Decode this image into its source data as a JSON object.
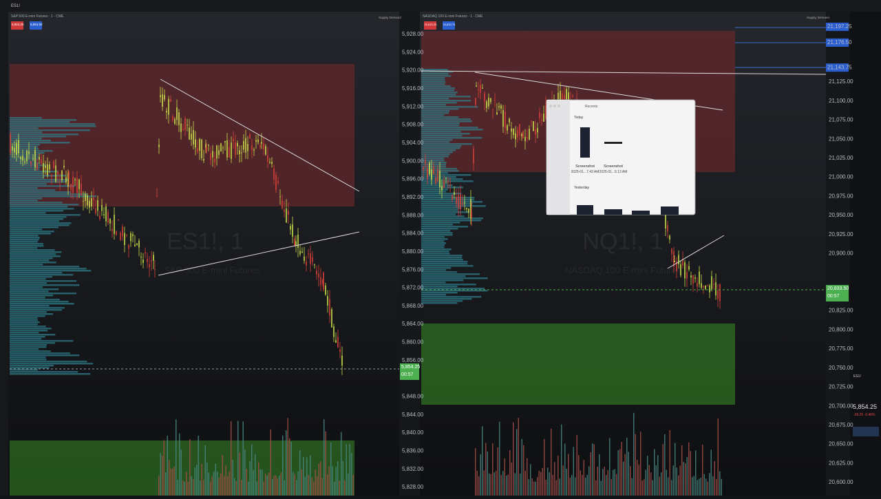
{
  "toolbar": {
    "symbol": "ES1!"
  },
  "left_chart": {
    "header": "S&P 500 E-mini Futures · 1 · CME",
    "sell_price": "5,854.25",
    "buy_price": "5,854.50",
    "watermark_symbol": "ES1!, 1",
    "watermark_name": "S&P 500 E-mini Futures",
    "supply_demand": "Supply, Demand",
    "price_ticks": [
      "5,928.00",
      "5,924.00",
      "5,920.00",
      "5,916.00",
      "5,912.00",
      "5,908.00",
      "5,904.00",
      "5,900.00",
      "5,896.00",
      "5,892.00",
      "5,888.00",
      "5,884.00",
      "5,880.00",
      "5,876.00",
      "5,872.00",
      "5,868.00",
      "5,864.00",
      "5,860.00",
      "5,856.00",
      "5,848.00",
      "5,844.00",
      "5,840.00",
      "5,836.00",
      "5,832.00",
      "5,828.00"
    ],
    "last_price": "5,854.25",
    "countdown": "00:57"
  },
  "right_chart": {
    "header": "NASDAQ 100 E-mini Futures · 1 · CME",
    "sell_price": "20,833.25",
    "buy_price": "20,833.75",
    "watermark_symbol": "NQ1!, 1",
    "watermark_name": "NASDAQ 100 E-mini Futures",
    "supply_demand": "Supply, Demand",
    "level_tags": [
      "21,197.25",
      "21,176.50",
      "21,143.75"
    ],
    "price_ticks": [
      "21,125.00",
      "21,100.00",
      "21,075.00",
      "21,050.00",
      "21,025.00",
      "21,000.00",
      "20,975.00",
      "20,950.00",
      "20,925.00",
      "20,900.00",
      "20,825.00",
      "20,800.00",
      "20,775.00",
      "20,750.00",
      "20,725.00",
      "20,700.00",
      "20,675.00",
      "20,650.00",
      "20,625.00",
      "20,600.00"
    ],
    "last_price": "20,833.50",
    "countdown": "00:57"
  },
  "file_dialog": {
    "title": "Recents",
    "section_today": "Today",
    "files": [
      {
        "name": "Screenshot",
        "date": "2025-01...7.43 AM"
      },
      {
        "name": "Screenshot",
        "date": "2025-01...5.13 AM"
      }
    ],
    "section_yesterday": "Yesterday"
  },
  "sidebar": {
    "symbol": "ES1!",
    "price": "5,854.25",
    "change": "-28.25 -0.48%"
  }
}
